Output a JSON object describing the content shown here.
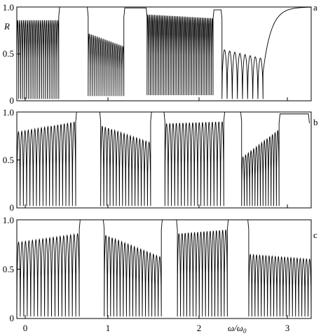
{
  "figure": {
    "x_axis_label_main": "ω/ω",
    "x_axis_label_sub": "0",
    "x_ticks": [
      {
        "value": 0,
        "label": "0"
      },
      {
        "value": 1,
        "label": "1"
      },
      {
        "value": 2,
        "label": "2"
      },
      {
        "value": 3,
        "label": "3"
      }
    ],
    "stroke_color": "#000000"
  },
  "chart_data": [
    {
      "type": "line",
      "panel": "a",
      "ylabel": "R",
      "xlim": [
        0,
        3.3
      ],
      "ylim": [
        0,
        1.0
      ],
      "y_ticks": [
        {
          "value": 0,
          "label": "0"
        },
        {
          "value": 0.5,
          "label": "0.5"
        },
        {
          "value": 1.0,
          "label": "1.0"
        }
      ],
      "segments": [
        {
          "x0": 0.0,
          "x1": 0.47,
          "kind": "osc",
          "n": 22,
          "top": 0.86,
          "top_end": 0.86,
          "floor": 0.02
        },
        {
          "x0": 0.47,
          "x1": 0.8,
          "kind": "band",
          "level": 1.0
        },
        {
          "x0": 0.8,
          "x1": 1.2,
          "kind": "osc",
          "n": 18,
          "top": 0.72,
          "top_end": 0.58,
          "floor": 0.05
        },
        {
          "x0": 1.2,
          "x1": 1.46,
          "kind": "band",
          "level": 0.99
        },
        {
          "x0": 1.46,
          "x1": 2.2,
          "kind": "osc",
          "n": 40,
          "top": 0.92,
          "top_end": 0.88,
          "floor": 0.06
        },
        {
          "x0": 2.2,
          "x1": 2.3,
          "kind": "band",
          "level": 0.97
        },
        {
          "x0": 2.3,
          "x1": 2.76,
          "kind": "osc",
          "n": 8,
          "top": 0.55,
          "top_end": 0.45,
          "floor": 0.02
        },
        {
          "x0": 2.76,
          "x1": 3.3,
          "kind": "rise",
          "from": 0.3,
          "level": 1.0
        }
      ]
    },
    {
      "type": "line",
      "panel": "b",
      "ylabel": "",
      "xlim": [
        0,
        3.3
      ],
      "ylim": [
        0,
        1.0
      ],
      "y_ticks": [
        {
          "value": 0,
          "label": "0"
        },
        {
          "value": 0.5,
          "label": "0.5"
        },
        {
          "value": 1.0,
          "label": "1.0"
        }
      ],
      "segments": [
        {
          "x0": 0.0,
          "x1": 0.66,
          "kind": "osc",
          "n": 18,
          "top": 0.79,
          "top_end": 0.9,
          "floor": 0.02
        },
        {
          "x0": 0.66,
          "x1": 0.94,
          "kind": "band",
          "level": 1.0
        },
        {
          "x0": 0.94,
          "x1": 1.5,
          "kind": "osc",
          "n": 16,
          "top": 0.86,
          "top_end": 0.68,
          "floor": 0.02
        },
        {
          "x0": 1.5,
          "x1": 1.66,
          "kind": "band",
          "level": 1.0
        },
        {
          "x0": 1.66,
          "x1": 2.32,
          "kind": "osc",
          "n": 18,
          "top": 0.88,
          "top_end": 0.9,
          "floor": 0.02
        },
        {
          "x0": 2.32,
          "x1": 2.52,
          "kind": "band",
          "level": 1.0
        },
        {
          "x0": 2.52,
          "x1": 2.94,
          "kind": "osc",
          "n": 14,
          "top": 0.52,
          "top_end": 0.82,
          "floor": 0.02
        },
        {
          "x0": 2.94,
          "x1": 3.28,
          "kind": "band",
          "level": 0.98
        }
      ]
    },
    {
      "type": "line",
      "panel": "c",
      "ylabel": "",
      "xlim": [
        0,
        3.3
      ],
      "ylim": [
        0,
        1.0
      ],
      "y_ticks": [
        {
          "value": 0,
          "label": "0"
        },
        {
          "value": 0.5,
          "label": "0.5"
        },
        {
          "value": 1.0,
          "label": "1.0"
        }
      ],
      "segments": [
        {
          "x0": 0.0,
          "x1": 0.7,
          "kind": "osc",
          "n": 18,
          "top": 0.77,
          "top_end": 0.86,
          "floor": 0.02
        },
        {
          "x0": 0.7,
          "x1": 0.98,
          "kind": "band",
          "level": 1.0
        },
        {
          "x0": 0.98,
          "x1": 1.62,
          "kind": "osc",
          "n": 18,
          "top": 0.85,
          "top_end": 0.62,
          "floor": 0.02
        },
        {
          "x0": 1.62,
          "x1": 1.8,
          "kind": "band",
          "level": 1.0
        },
        {
          "x0": 1.8,
          "x1": 2.36,
          "kind": "osc",
          "n": 16,
          "top": 0.86,
          "top_end": 0.9,
          "floor": 0.02
        },
        {
          "x0": 2.36,
          "x1": 2.6,
          "kind": "band",
          "level": 1.0
        },
        {
          "x0": 2.6,
          "x1": 3.3,
          "kind": "osc",
          "n": 20,
          "top": 0.65,
          "top_end": 0.6,
          "floor": 0.02
        }
      ]
    }
  ]
}
